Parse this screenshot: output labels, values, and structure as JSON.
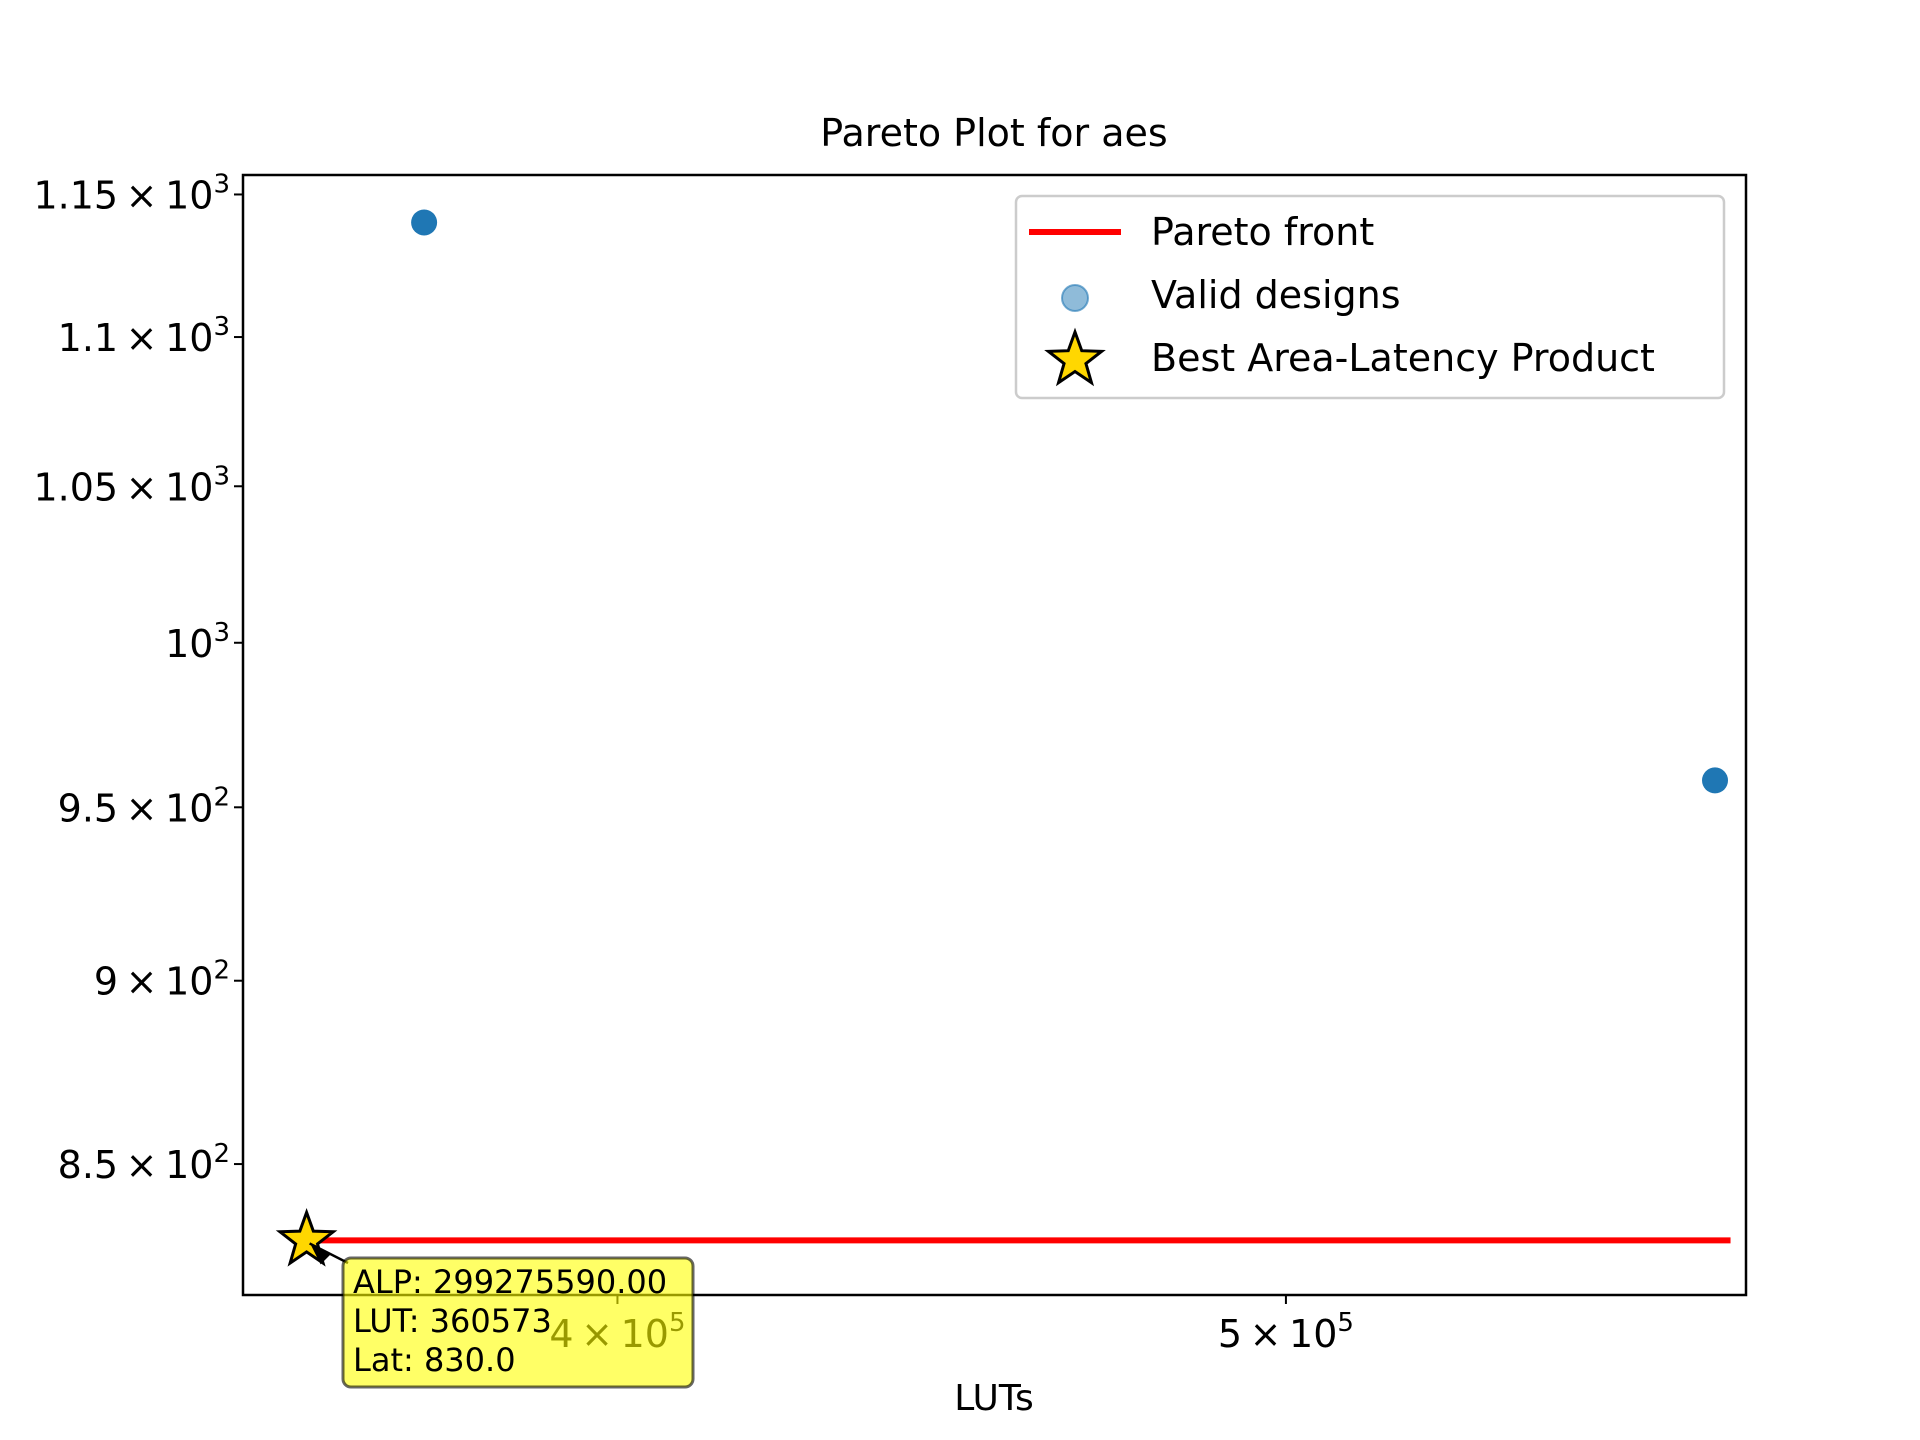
{
  "chart_data": {
    "type": "scatter",
    "title": "Pareto Plot for aes",
    "xlabel": "LUTs",
    "ylabel": "",
    "x_scale": "log",
    "y_scale": "log",
    "xlim": [
      353000,
      583000
    ],
    "ylim": [
      816,
      1157
    ],
    "x_ticks": [
      {
        "value": 400000,
        "mantissa": "4",
        "base": "10",
        "exp": "5"
      },
      {
        "value": 500000,
        "mantissa": "5",
        "base": "10",
        "exp": "5"
      }
    ],
    "y_ticks": [
      {
        "value": 850,
        "mantissa": "8.5",
        "base": "10",
        "exp": "2"
      },
      {
        "value": 900,
        "mantissa": "9",
        "base": "10",
        "exp": "2"
      },
      {
        "value": 950,
        "mantissa": "9.5",
        "base": "10",
        "exp": "2"
      },
      {
        "value": 1000,
        "mantissa": "",
        "base": "10",
        "exp": "3"
      },
      {
        "value": 1050,
        "mantissa": "1.05",
        "base": "10",
        "exp": "3"
      },
      {
        "value": 1100,
        "mantissa": "1.1",
        "base": "10",
        "exp": "3"
      },
      {
        "value": 1150,
        "mantissa": "1.15",
        "base": "10",
        "exp": "3"
      }
    ],
    "series": [
      {
        "name": "Pareto front",
        "kind": "line",
        "color": "#ff0000",
        "points": [
          {
            "x": 360573,
            "y": 830
          },
          {
            "x": 580000,
            "y": 830
          }
        ]
      },
      {
        "name": "Valid designs",
        "kind": "scatter",
        "color": "#1f77b4",
        "points": [
          {
            "x": 375000,
            "y": 1140
          },
          {
            "x": 577000,
            "y": 958
          }
        ]
      },
      {
        "name": "Best Area-Latency Product",
        "kind": "star",
        "color": "#ffd700",
        "points": [
          {
            "x": 360573,
            "y": 830
          }
        ]
      }
    ],
    "legend": {
      "position": "top-right",
      "entries": [
        "Pareto front",
        "Valid designs",
        "Best Area-Latency Product"
      ]
    },
    "annotation": {
      "anchor": {
        "x": 360573,
        "y": 830
      },
      "lines": [
        "ALP: 299275590.00",
        "LUT: 360573",
        "Lat: 830.0"
      ],
      "background": "#ffff00"
    },
    "grid": false
  }
}
